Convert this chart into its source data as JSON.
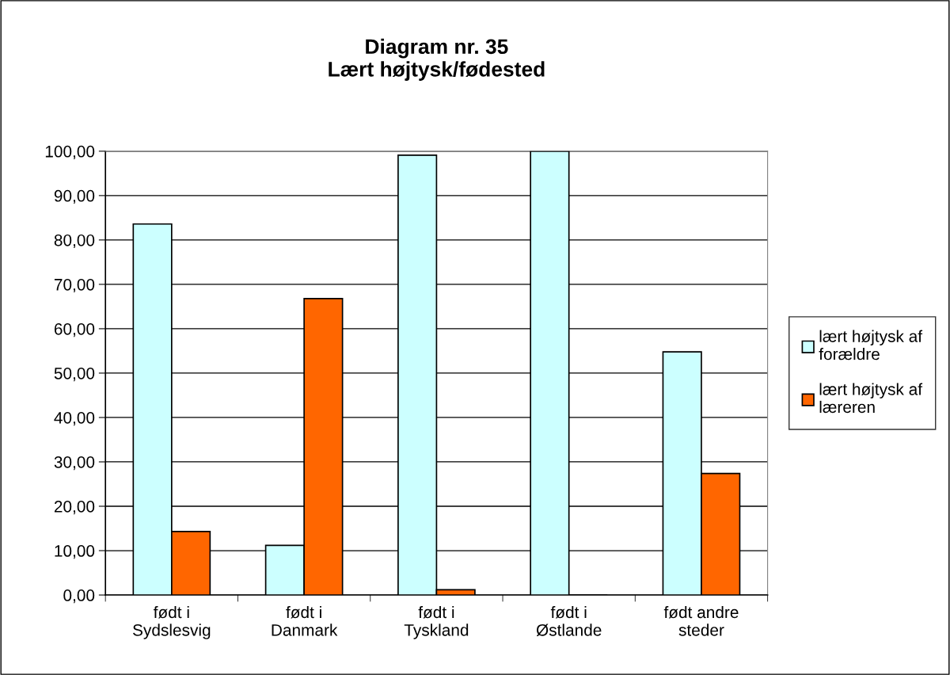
{
  "chart_data": {
    "type": "bar",
    "title": "Diagram nr. 35\nLært højtysk/fødested",
    "categories": [
      "født i\nSydslesvig",
      "født i\nDanmark",
      "født i\nTyskland",
      "født i\nØstlande",
      "født andre\nsteder"
    ],
    "series": [
      {
        "name": "lært højtysk af\nforældre",
        "color": "#ccffff",
        "values": [
          83.6,
          11.2,
          99.1,
          100,
          54.8
        ]
      },
      {
        "name": "lært højtysk af\nlæreren",
        "color": "#ff6600",
        "values": [
          14.3,
          66.8,
          1.2,
          0,
          27.4
        ]
      }
    ],
    "ylim": [
      0,
      100
    ],
    "yticks": [
      {
        "value": 0,
        "label": "0,00"
      },
      {
        "value": 10,
        "label": "10,00"
      },
      {
        "value": 20,
        "label": "20,00"
      },
      {
        "value": 30,
        "label": "30,00"
      },
      {
        "value": 40,
        "label": "40,00"
      },
      {
        "value": 50,
        "label": "50,00"
      },
      {
        "value": 60,
        "label": "60,00"
      },
      {
        "value": 70,
        "label": "70,00"
      },
      {
        "value": 80,
        "label": "80,00"
      },
      {
        "value": 90,
        "label": "90,00"
      },
      {
        "value": 100,
        "label": "100,00"
      }
    ],
    "grid": "y",
    "legend": "right"
  }
}
